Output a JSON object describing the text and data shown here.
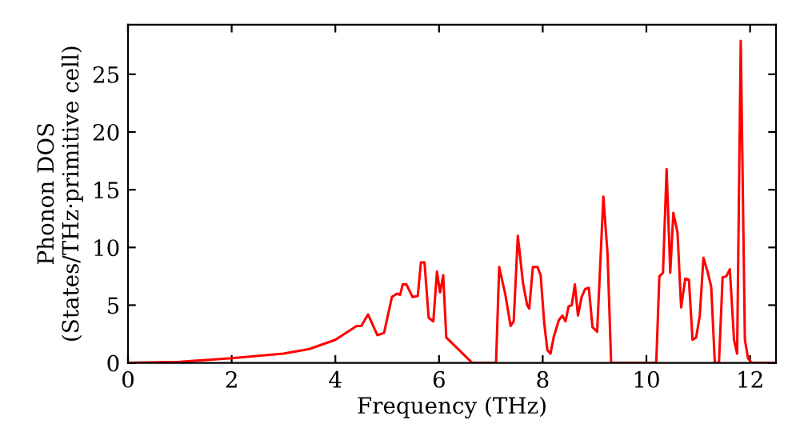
{
  "chart_data": {
    "type": "line",
    "xlabel": "Frequency (THz)",
    "ylabel": "Phonon DOS\n(States/THz·primitive cell)",
    "xlim": [
      0,
      12.5
    ],
    "ylim": [
      0,
      29.3
    ],
    "xticks": [
      0,
      2,
      4,
      6,
      8,
      10,
      12
    ],
    "yticks": [
      0,
      5,
      10,
      15,
      20,
      25
    ],
    "grid": false,
    "legend": false,
    "series": [
      {
        "color": "#ff0000",
        "x": [
          0,
          1,
          2,
          3,
          3.5,
          4.0,
          4.41,
          4.5,
          4.63,
          4.81,
          4.94,
          5.09,
          5.19,
          5.25,
          5.3,
          5.37,
          5.49,
          5.59,
          5.65,
          5.72,
          5.8,
          5.89,
          5.96,
          6.02,
          6.08,
          6.14,
          6.64,
          7.1,
          7.16,
          7.28,
          7.38,
          7.44,
          7.52,
          7.62,
          7.7,
          7.74,
          7.81,
          7.9,
          7.96,
          8.03,
          8.09,
          8.15,
          8.21,
          8.31,
          8.38,
          8.44,
          8.5,
          8.56,
          8.62,
          8.68,
          8.75,
          8.82,
          8.89,
          8.96,
          9.05,
          9.17,
          9.25,
          9.32,
          10.19,
          10.25,
          10.32,
          10.39,
          10.46,
          10.52,
          10.6,
          10.67,
          10.75,
          10.82,
          10.89,
          10.96,
          11.03,
          11.1,
          11.18,
          11.25,
          11.32,
          11.4,
          11.47,
          11.54,
          11.61,
          11.69,
          11.75,
          11.82,
          11.9,
          11.96,
          12.03,
          12.5
        ],
        "values": [
          0,
          0.1,
          0.4,
          0.8,
          1.2,
          2.0,
          3.2,
          3.2,
          4.2,
          2.4,
          2.6,
          5.7,
          6.0,
          5.9,
          6.8,
          6.8,
          5.7,
          5.8,
          8.7,
          8.7,
          3.9,
          3.6,
          7.9,
          6.1,
          7.6,
          2.2,
          0,
          0,
          8.3,
          5.9,
          3.2,
          3.6,
          11.0,
          6.9,
          5.0,
          4.7,
          8.3,
          8.3,
          7.6,
          3.4,
          1.1,
          0.8,
          2.2,
          3.7,
          4.1,
          3.6,
          4.9,
          5.0,
          6.8,
          4.1,
          5.7,
          6.4,
          6.5,
          3.1,
          2.7,
          14.4,
          9.5,
          0,
          0,
          7.5,
          7.8,
          16.8,
          7.8,
          13.0,
          11.3,
          4.8,
          7.3,
          7.2,
          2.0,
          2.2,
          4.1,
          9.1,
          7.9,
          6.6,
          0,
          0,
          7.4,
          7.5,
          8.1,
          2.0,
          0.8,
          27.9,
          2.0,
          0.4,
          0,
          0
        ]
      }
    ]
  }
}
